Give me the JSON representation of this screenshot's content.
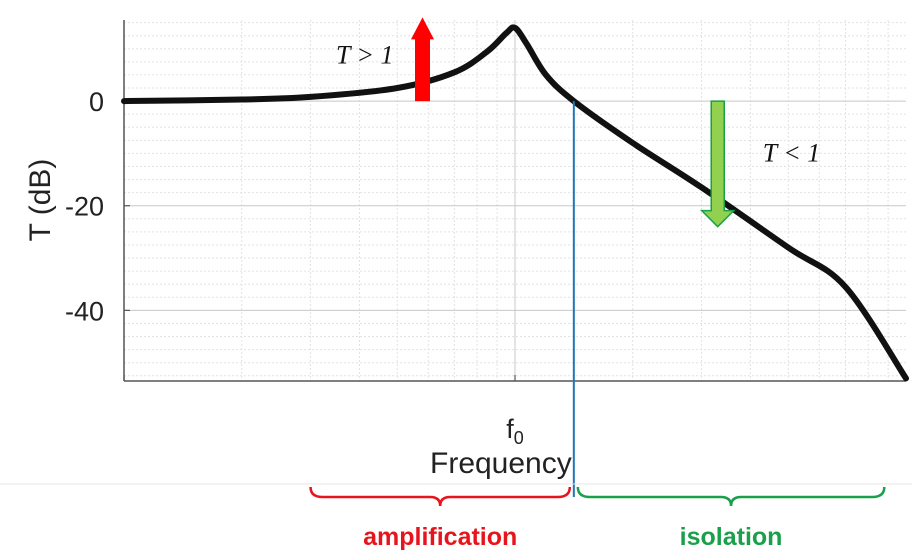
{
  "chart_data": {
    "type": "line",
    "title": "",
    "xlabel": "Frequency",
    "ylabel": "T (dB)",
    "xscale": "log",
    "x_unit": "f/f0",
    "xlim": [
      0.1,
      10
    ],
    "ylim": [
      -53.5,
      15.5
    ],
    "yticks": [
      0,
      -20,
      -40
    ],
    "ytick_labels": [
      "0",
      "-20",
      "-40"
    ],
    "xtick_labels": [
      {
        "x": 1,
        "label": "f0"
      }
    ],
    "grid": true,
    "series": [
      {
        "color": "#111111",
        "points": [
          {
            "x": 0.1,
            "y": 0.0
          },
          {
            "x": 0.2,
            "y": 0.3
          },
          {
            "x": 0.3,
            "y": 0.8
          },
          {
            "x": 0.5,
            "y": 2.5
          },
          {
            "x": 0.7,
            "y": 5.5
          },
          {
            "x": 0.85,
            "y": 9.5
          },
          {
            "x": 0.95,
            "y": 13.0
          },
          {
            "x": 1.0,
            "y": 14.0
          },
          {
            "x": 1.07,
            "y": 11.0
          },
          {
            "x": 1.2,
            "y": 5.0
          },
          {
            "x": 1.414,
            "y": 0.0
          },
          {
            "x": 2.0,
            "y": -8.0
          },
          {
            "x": 3.0,
            "y": -16.5
          },
          {
            "x": 5.0,
            "y": -28.0
          },
          {
            "x": 7.0,
            "y": -35.5
          },
          {
            "x": 10.0,
            "y": -53.0
          }
        ]
      }
    ],
    "crossover": {
      "x": 1.414,
      "color": "#1f77b4"
    },
    "annotations": [
      {
        "text": "T > 1",
        "arrow": "up",
        "color": "#ff0000",
        "x": 0.58,
        "y_from": 0,
        "y_to": 16
      },
      {
        "text": "T < 1",
        "arrow": "down",
        "color": "#92d050",
        "x": 3.3,
        "y_from": 0,
        "y_to": -24
      }
    ],
    "regions": [
      {
        "label": "amplification",
        "color": "#e8141b",
        "x_from": 0.3,
        "x_to": 1.414
      },
      {
        "label": "isolation",
        "color": "#1aa04a",
        "x_from": 1.414,
        "x_to": 8.8
      }
    ]
  }
}
